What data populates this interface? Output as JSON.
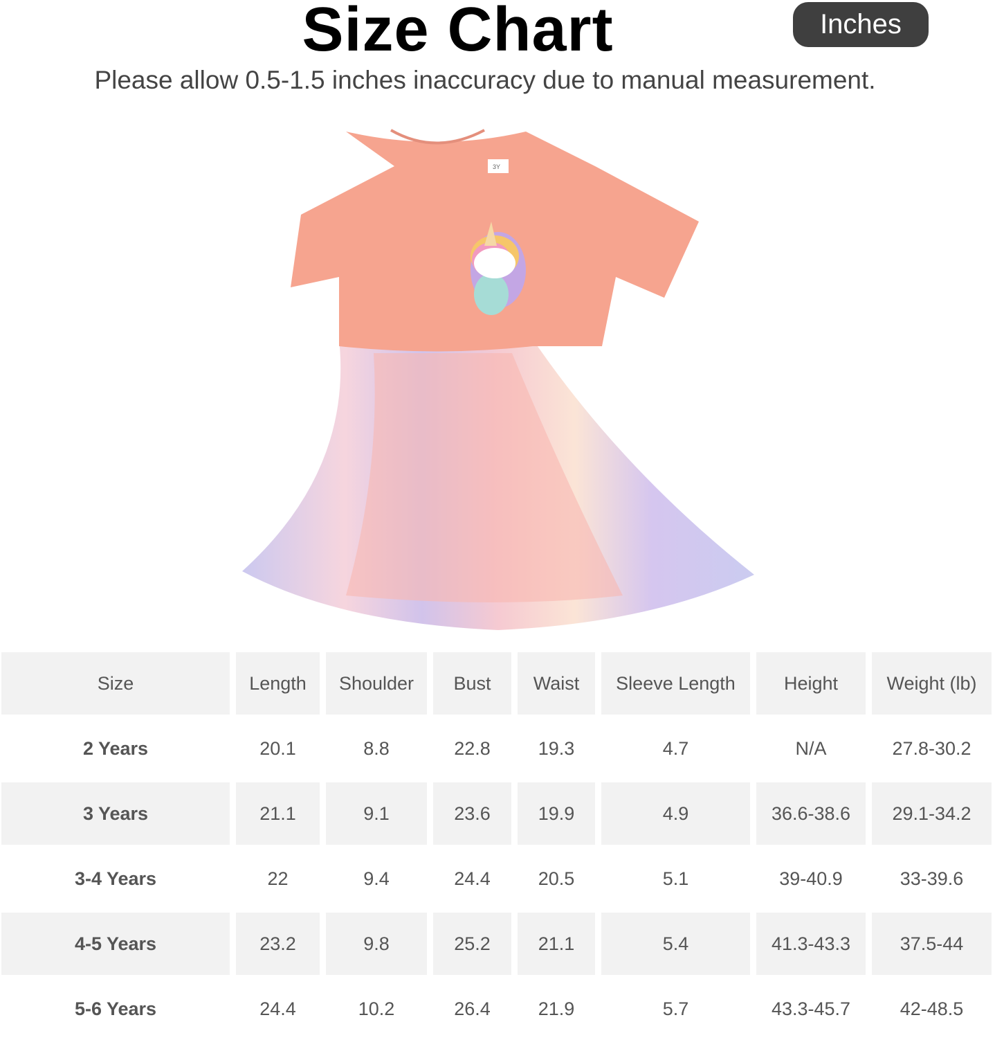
{
  "header": {
    "title": "Size Chart",
    "unit_label": "Inches",
    "note": "Please allow 0.5-1.5 inches inaccuracy due to manual measurement."
  },
  "product_image": {
    "description_label": "3Y"
  },
  "table": {
    "columns": [
      "Size",
      "Length",
      "Shoulder",
      "Bust",
      "Waist",
      "Sleeve Length",
      "Height",
      "Weight (lb)"
    ],
    "rows": [
      [
        "2 Years",
        "20.1",
        "8.8",
        "22.8",
        "19.3",
        "4.7",
        "N/A",
        "27.8-30.2"
      ],
      [
        "3 Years",
        "21.1",
        "9.1",
        "23.6",
        "19.9",
        "4.9",
        "36.6-38.6",
        "29.1-34.2"
      ],
      [
        "3-4 Years",
        "22",
        "9.4",
        "24.4",
        "20.5",
        "5.1",
        "39-40.9",
        "33-39.6"
      ],
      [
        "4-5 Years",
        "23.2",
        "9.8",
        "25.2",
        "21.1",
        "5.4",
        "41.3-43.3",
        "37.5-44"
      ],
      [
        "5-6 Years",
        "24.4",
        "10.2",
        "26.4",
        "21.9",
        "5.7",
        "43.3-45.7",
        "42-48.5"
      ]
    ]
  },
  "colors": {
    "unit_badge": "#3f3f3f",
    "shaded_row": "#f2f2f2",
    "dress_top": "#f6a48f"
  }
}
